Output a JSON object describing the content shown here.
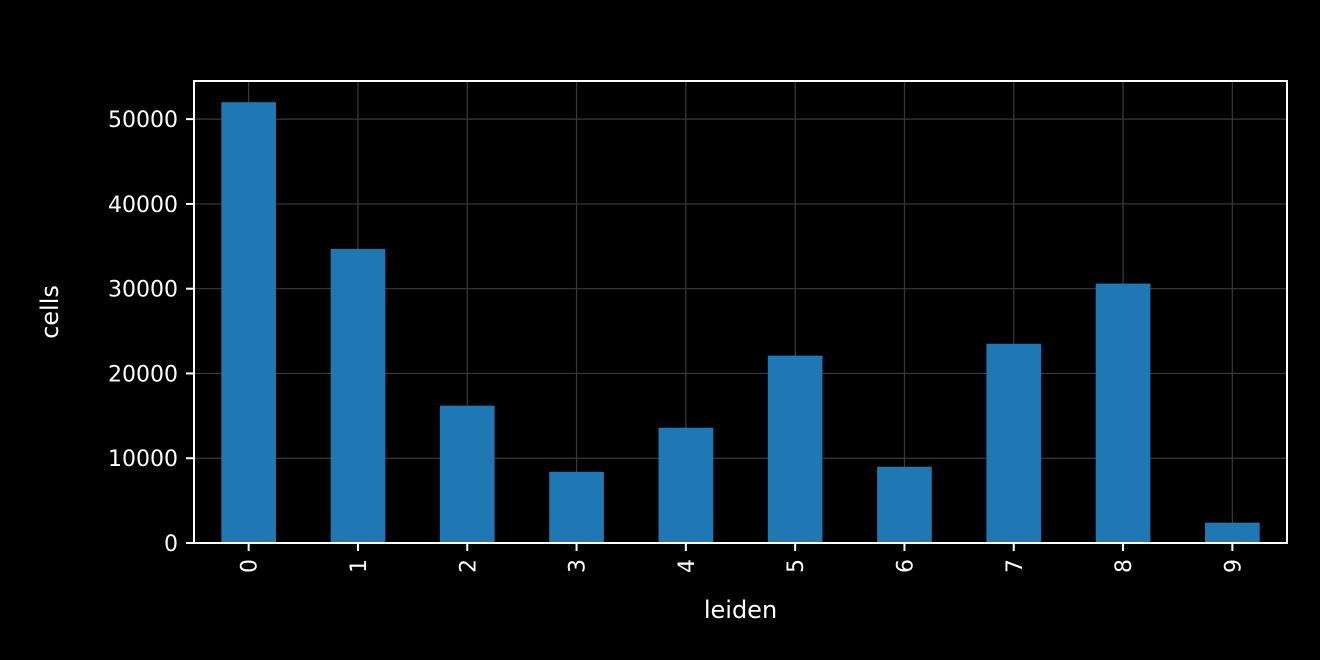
{
  "chart_data": {
    "type": "bar",
    "title": "",
    "xlabel": "leiden",
    "ylabel": "cells",
    "categories": [
      "0",
      "1",
      "2",
      "3",
      "4",
      "5",
      "6",
      "7",
      "8",
      "9"
    ],
    "values": [
      52000,
      34700,
      16200,
      8400,
      13600,
      22100,
      9000,
      23500,
      30600,
      2400
    ],
    "ylim": [
      0,
      54500
    ],
    "yticks": [
      0,
      10000,
      20000,
      30000,
      40000,
      50000
    ],
    "ytick_labels": [
      "0",
      "10000",
      "20000",
      "30000",
      "40000",
      "50000"
    ],
    "grid": true,
    "legend": "none",
    "x_tick_rotation": "vertical",
    "colors": {
      "background": "#000000",
      "bar": "#1f77b4",
      "axes": "#ffffff",
      "text": "#ffffff",
      "grid": "#3a3a3a"
    }
  }
}
